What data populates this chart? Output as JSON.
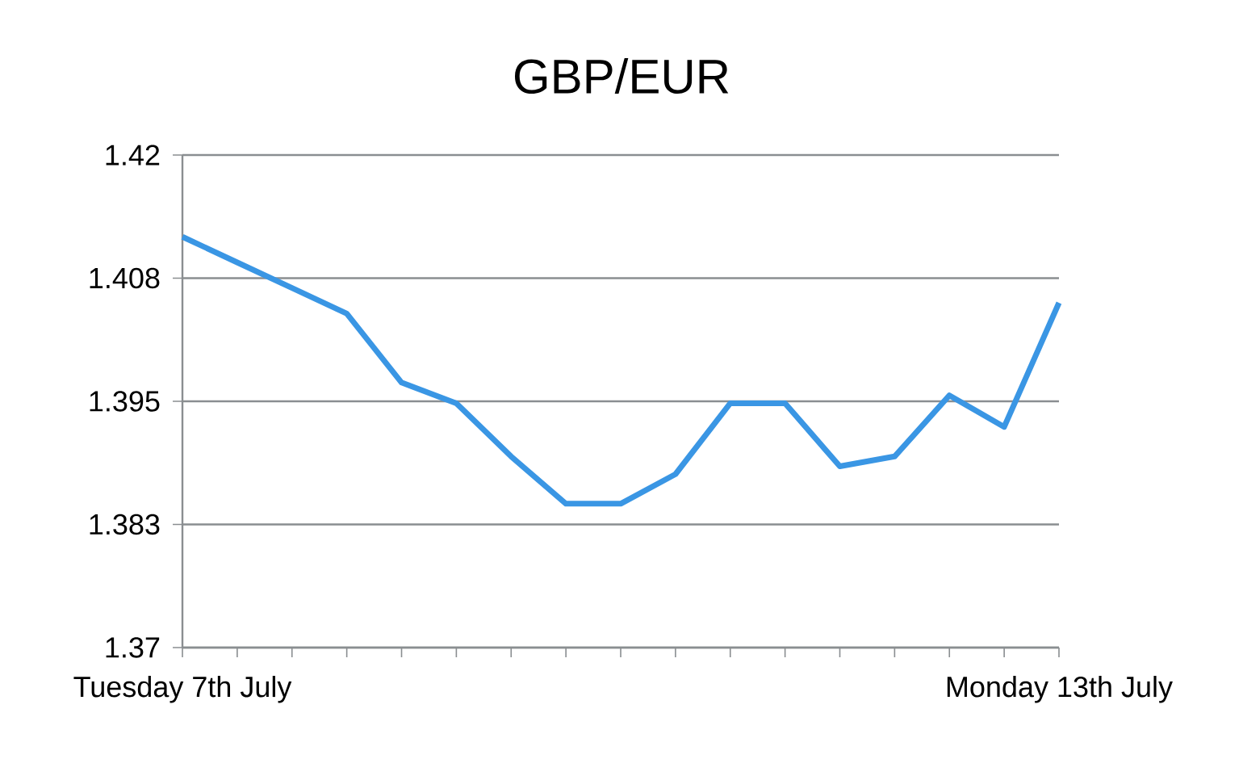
{
  "chart_data": {
    "type": "line",
    "title": "GBP/EUR",
    "categories": [
      "Tuesday 7th July",
      null,
      null,
      null,
      null,
      null,
      null,
      null,
      null,
      null,
      null,
      null,
      null,
      null,
      null,
      null,
      "Monday 13th July"
    ],
    "series": [
      {
        "color": "#3a96e4",
        "values": [
          1.4117,
          1.4091,
          1.4065,
          1.4039,
          1.3969,
          1.3948,
          1.3894,
          1.3846,
          1.3846,
          1.3876,
          1.3948,
          1.3948,
          1.3884,
          1.3894,
          1.3956,
          1.3924,
          1.405
        ]
      }
    ],
    "ylim": [
      1.37,
      1.42
    ],
    "yticks": [
      1.37,
      {
        "value": 1.3825,
        "label": "1.383"
      },
      1.395,
      {
        "value": 1.4075,
        "label": "1.408"
      },
      1.42
    ],
    "grid": "y",
    "marker": "none",
    "line_style": "solid",
    "legend": false
  }
}
